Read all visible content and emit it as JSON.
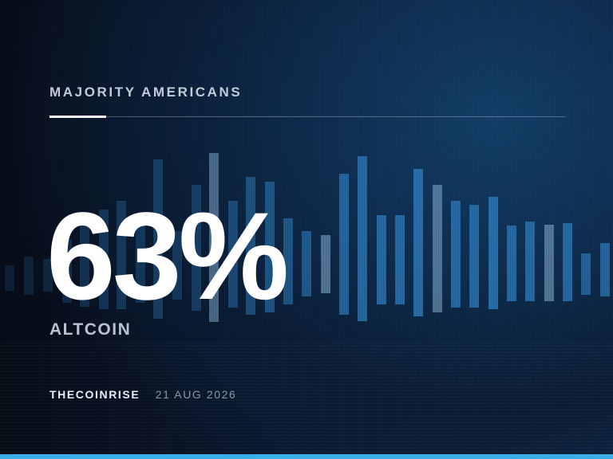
{
  "card": {
    "kicker": "MAJORITY AMERICANS",
    "value": "63%",
    "label": "ALTCOIN",
    "brand": "THECOINRISE",
    "date": "21 AUG 2026"
  },
  "colors": {
    "background": "#0b1d35",
    "accent": "#3aaee8",
    "bar": "#2f7fc0",
    "text": "#ffffff",
    "muted": "#8a97a6"
  }
}
